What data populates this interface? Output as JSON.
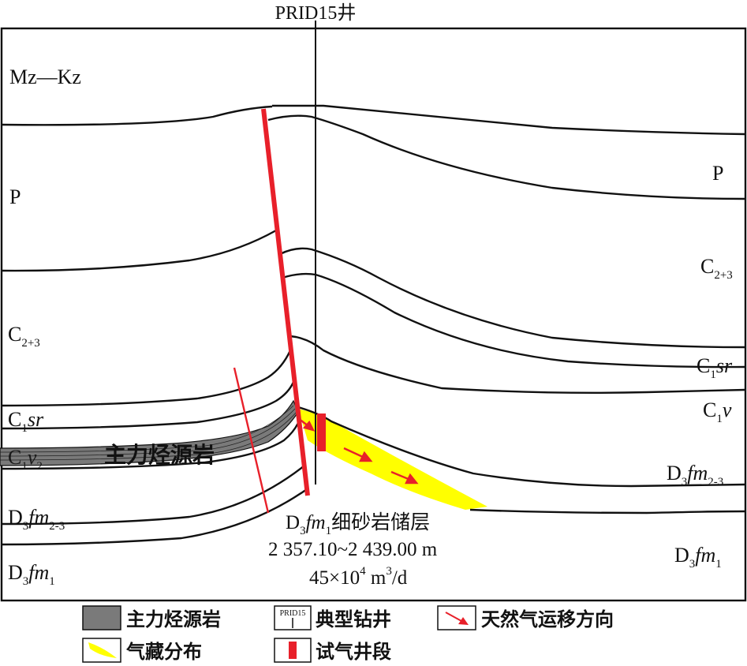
{
  "well": {
    "title": "PRID15井"
  },
  "left_labels": {
    "mz_kz": "Mz—Kz",
    "p": "P",
    "c23_base": "C",
    "c23_sub": "2+3",
    "c1sr_base": "C",
    "c1sr_sub": "1",
    "c1sr_tail": "sr",
    "c1v2_base": "C",
    "c1v2_sub": "1",
    "c1v2_mid": "v",
    "c1v2_sub2": "2",
    "source_rock_label": "主力烃源岩",
    "d3fm23_base": "D",
    "d3fm23_sub": "3",
    "d3fm23_mid": "fm",
    "d3fm23_sub2": "2-3",
    "d3fm1_base": "D",
    "d3fm1_sub": "3",
    "d3fm1_mid": "fm",
    "d3fm1_sub2": "1"
  },
  "right_labels": {
    "p": "P",
    "c23_base": "C",
    "c23_sub": "2+3",
    "c1sr_base": "C",
    "c1sr_sub": "1",
    "c1sr_tail": "sr",
    "c1v_base": "C",
    "c1v_sub": "1",
    "c1v_tail": "v",
    "d3fm23_base": "D",
    "d3fm23_sub": "3",
    "d3fm23_mid": "fm",
    "d3fm23_sub2": "2-3",
    "d3fm1_base": "D",
    "d3fm1_sub": "3",
    "d3fm1_mid": "fm",
    "d3fm1_sub2": "1"
  },
  "caption": {
    "line1_base": "D",
    "line1_sub": "3",
    "line1_mid": "fm",
    "line1_sub2": "1",
    "line1_tail": "细砂岩储层",
    "line2": "2 357.10~2 439.00 m",
    "line3_a": "45×10",
    "line3_sup1": "4",
    "line3_b": " m",
    "line3_sup2": "3",
    "line3_c": "/d"
  },
  "legend": {
    "source_rock": "主力烃源岩",
    "typical_well_icon_text": "PRID15",
    "typical_well": "典型钻井",
    "gas_migration": "天然气运移方向",
    "gas_reservoir": "气藏分布",
    "test_interval": "试气井段"
  },
  "colors": {
    "source_rock": "#7a7a7a",
    "gas_reservoir": "#ffff00",
    "fault_and_test": "#e8202a",
    "line": "#111111"
  }
}
